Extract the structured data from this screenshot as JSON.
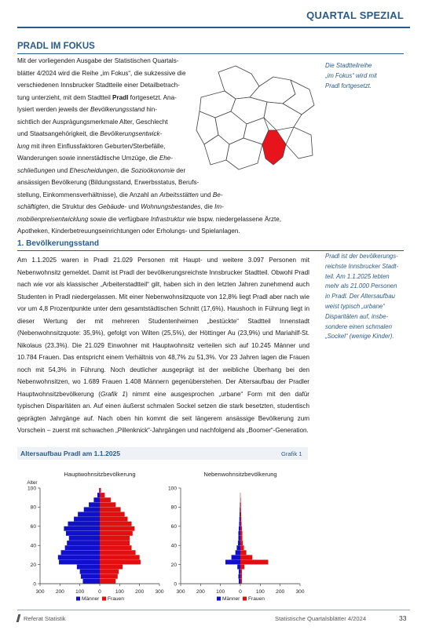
{
  "header": {
    "title": "QUARTAL SPEZIAL"
  },
  "section": {
    "title": "PRADL IM FOKUS"
  },
  "intro": {
    "p1": "Mit der vorliegenden Ausgabe der Statistischen Quartals-",
    "p2": "blätter 4/2024 wird die Reihe „im Fokus“, die sukzessive die",
    "p3": "verschiedenen Innsbrucker Stadtteile einer Detailbetrach-",
    "p4a": "tung unterzieht, mit dem Stadtteil ",
    "p4b": "Pradl",
    "p4c": " fortgesetzt. Ana-",
    "p5a": "lysiert werden jeweils der ",
    "p5b": "Bevölkerungsstand",
    "p5c": " hin-",
    "p6": "sichtlich der Ausprägungsmerkmale Alter, Geschlecht",
    "p7a": "und Staatsangehörigkeit, die ",
    "p7b": "Bevölkerungsentwick-",
    "p8a": "lung",
    "p8b": " mit ihren Einflussfaktoren Geburten/Sterbefälle,",
    "p9a": "Wanderungen sowie innerstädtische Umzüge, die ",
    "p9b": "Ehe-",
    "p10a": "schließungen",
    "p10b": " und ",
    "p10c": "Ehescheidungen",
    "p10d": ", die ",
    "p10e": "Sozioökonomie",
    "p10f": " der",
    "p11": "ansässigen Bevölkerung (Bildungsstand, Erwerbsstatus, Berufs-",
    "p12a": "stellung, Einkommensverhältnisse), die Anzahl an ",
    "p12b": "Arbeitsstätten",
    "p12c": " und ",
    "p12d": "Be-",
    "p13a": "schäftigten",
    "p13b": ", die Struktur des ",
    "p13c": "Gebäude-",
    "p13d": " und ",
    "p13e": "Wohnungsbestandes",
    "p13f": ", die ",
    "p13g": "Im-",
    "p14a": "mobilienpreisentwicklung",
    "p14b": " sowie die verfügbare ",
    "p14c": "Infrastruktur",
    "p14d": " wie bspw. niedergelassene Ärzte,",
    "p15": "Apotheken, Kinderbetreuungseinrichtungen oder Erholungs- und Spielanlagen."
  },
  "note1": {
    "l1": "Die Stadtteilreihe",
    "l2": "„im Fokus“ wird mit",
    "l3": "Pradl fortgesetzt."
  },
  "subsection": {
    "title": "1. Bevölkerungsstand"
  },
  "body": {
    "text1": "Am 1.1.2025 waren in Pradl 21.029 Personen mit Haupt- und weitere 3.097 Personen mit Nebenwohnsitz gemeldet. Damit ist Pradl der bevölkerungsreichste Innsbrucker Stadtteil. Obwohl Pradl nach wie vor als klassischer „Arbeiterstadtteil“ gilt, haben sich in den letzten Jahren zunehmend auch Studenten in Pradl niedergelassen. Mit einer Nebenwohnsitzquote von 12,8% liegt Pradl aber nach wie vor um 4,8 Prozentpunkte unter dem gesamtstädtischen Schnitt (17,6%). Haushoch in Führung liegt in dieser Wertung der mit mehreren Studentenheimen „bestückte“ Stadtteil Innenstadt (Nebenwohnsitzquote: 35,9%), gefolgt von Wilten (25,5%), der Höttinger Au (23,9%) und Mariahilf-St. Nikolaus (23,3%). Die 21.029 Einwohner mit Hauptwohnsitz verteilen sich auf 10.245 Männer und 10.784 Frauen. Das entspricht einem Verhältnis von 48,7% zu 51,3%. Vor 23 Jahren lagen die Frauen noch mit 54,3% in Führung. Noch deutlicher ausgeprägt ist der weibliche Überhang bei den Nebenwohnsitzen, wo 1.689 Frauen 1.408 Männern gegenüberstehen. Der Altersaufbau der Pradler Hauptwohnsitzbevölkerung (",
    "grafik_ref": "Grafik 1",
    "text2": ") nimmt eine ausgesprochen „urbane“ Form mit den dafür typischen Disparitäten an. Auf einen äußerst schmalen Sockel setzen die stark besetzten, studentisch geprägten Jahrgänge auf. Nach oben hin kommt die seit längerem ansässige Bevölkerung zum Vorschein – zuerst mit schwachen „Pillenknick“-Jahrgängen und nachfolgend als „Boomer“-Generation."
  },
  "note2": {
    "l1": "Pradl ist der bevölkerungs-",
    "l2": "reichste Innsbrucker Stadt-",
    "l3": "teil. Am 1.1.2025 lebten",
    "l4": "mehr als 21.000 Personen",
    "l5": "in Pradl. Der Altersaufbau",
    "l6": "weist typisch „urbane“",
    "l7": "Disparitäten auf, insbe-",
    "l8": "sondere einen schmalen",
    "l9": "„Sockel“ (wenige Kinder)."
  },
  "chart_header": {
    "title": "Altersaufbau Pradl am 1.1.2025",
    "grafik": "Grafik 1"
  },
  "colors": {
    "accent": "#2a5a8a",
    "maenner": "#1010c8",
    "frauen": "#e01010",
    "highlight": "#e8141c"
  },
  "chart_data": [
    {
      "type": "bar",
      "orientation": "horizontal-population-pyramid",
      "title": "Hauptwohnsitzbevölkerung",
      "ylabel": "Alter",
      "ylim": [
        0,
        100
      ],
      "yticks": [
        0,
        20,
        40,
        60,
        80,
        100
      ],
      "xlim": [
        -300,
        300
      ],
      "xticks": [
        "300",
        "200",
        "100",
        "0",
        "100",
        "200",
        "300"
      ],
      "age_groups_start": [
        0,
        5,
        10,
        15,
        20,
        25,
        30,
        35,
        40,
        45,
        50,
        55,
        60,
        65,
        70,
        75,
        80,
        85,
        90,
        95
      ],
      "series": [
        {
          "name": "Männer",
          "values": [
            85,
            95,
            100,
            115,
            205,
            210,
            195,
            175,
            165,
            155,
            170,
            180,
            160,
            130,
            110,
            80,
            55,
            30,
            12,
            3
          ]
        },
        {
          "name": "Frauen",
          "values": [
            80,
            90,
            95,
            115,
            205,
            200,
            180,
            160,
            150,
            150,
            165,
            175,
            160,
            140,
            125,
            105,
            80,
            55,
            25,
            6
          ]
        }
      ]
    },
    {
      "type": "bar",
      "orientation": "horizontal-population-pyramid",
      "title": "Nebenwohnsitzbevölkerung",
      "ylabel": "",
      "ylim": [
        0,
        100
      ],
      "yticks": [
        0,
        20,
        40,
        60,
        80,
        100
      ],
      "xlim": [
        -300,
        300
      ],
      "xticks": [
        "300",
        "200",
        "100",
        "0",
        "100",
        "200",
        "300"
      ],
      "age_groups_start": [
        0,
        5,
        10,
        15,
        20,
        25,
        30,
        35,
        40,
        45,
        50,
        55,
        60,
        65,
        70,
        75,
        80,
        85,
        90,
        95
      ],
      "series": [
        {
          "name": "Männer",
          "values": [
            8,
            10,
            8,
            15,
            75,
            45,
            25,
            18,
            12,
            10,
            10,
            8,
            6,
            5,
            4,
            3,
            2,
            1,
            1,
            0
          ]
        },
        {
          "name": "Frauen",
          "values": [
            8,
            8,
            8,
            20,
            140,
            60,
            30,
            18,
            12,
            10,
            10,
            8,
            6,
            5,
            4,
            3,
            3,
            2,
            1,
            0
          ]
        }
      ]
    }
  ],
  "legend": {
    "maenner": "Männer",
    "frauen": "Frauen"
  },
  "footer": {
    "left": "Referat Statistik",
    "right": "Statistische Quartalsblätter 4/2024",
    "page": "33"
  }
}
